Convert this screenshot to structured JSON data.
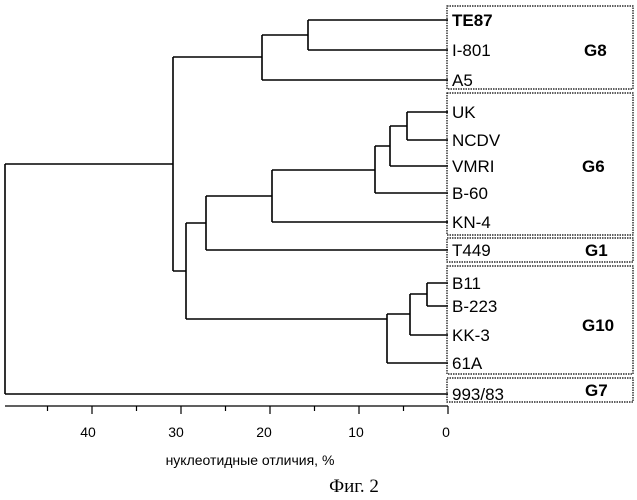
{
  "tree": {
    "leaves": [
      {
        "label": "TE87",
        "bold": true
      },
      {
        "label": "I-801"
      },
      {
        "label": "A5"
      },
      {
        "label": "UK"
      },
      {
        "label": "NCDV"
      },
      {
        "label": "VMRI"
      },
      {
        "label": "B-60"
      },
      {
        "label": "KN-4"
      },
      {
        "label": "T449"
      },
      {
        "label": "B11"
      },
      {
        "label": "B-223"
      },
      {
        "label": "KK-3"
      },
      {
        "label": "61A"
      },
      {
        "label": "993/83"
      }
    ],
    "groups": [
      {
        "name": "G8",
        "leaves": [
          0,
          2
        ]
      },
      {
        "name": "G6",
        "leaves": [
          3,
          7
        ]
      },
      {
        "name": "G1",
        "leaves": [
          8,
          8
        ]
      },
      {
        "name": "G10",
        "leaves": [
          9,
          12
        ]
      },
      {
        "name": "G7",
        "leaves": [
          13,
          13
        ]
      }
    ]
  },
  "axis": {
    "ticks": [
      "40",
      "30",
      "20",
      "10",
      "0"
    ],
    "label": "нуклеотидные отличия, %"
  },
  "caption": "Фиг. 2"
}
